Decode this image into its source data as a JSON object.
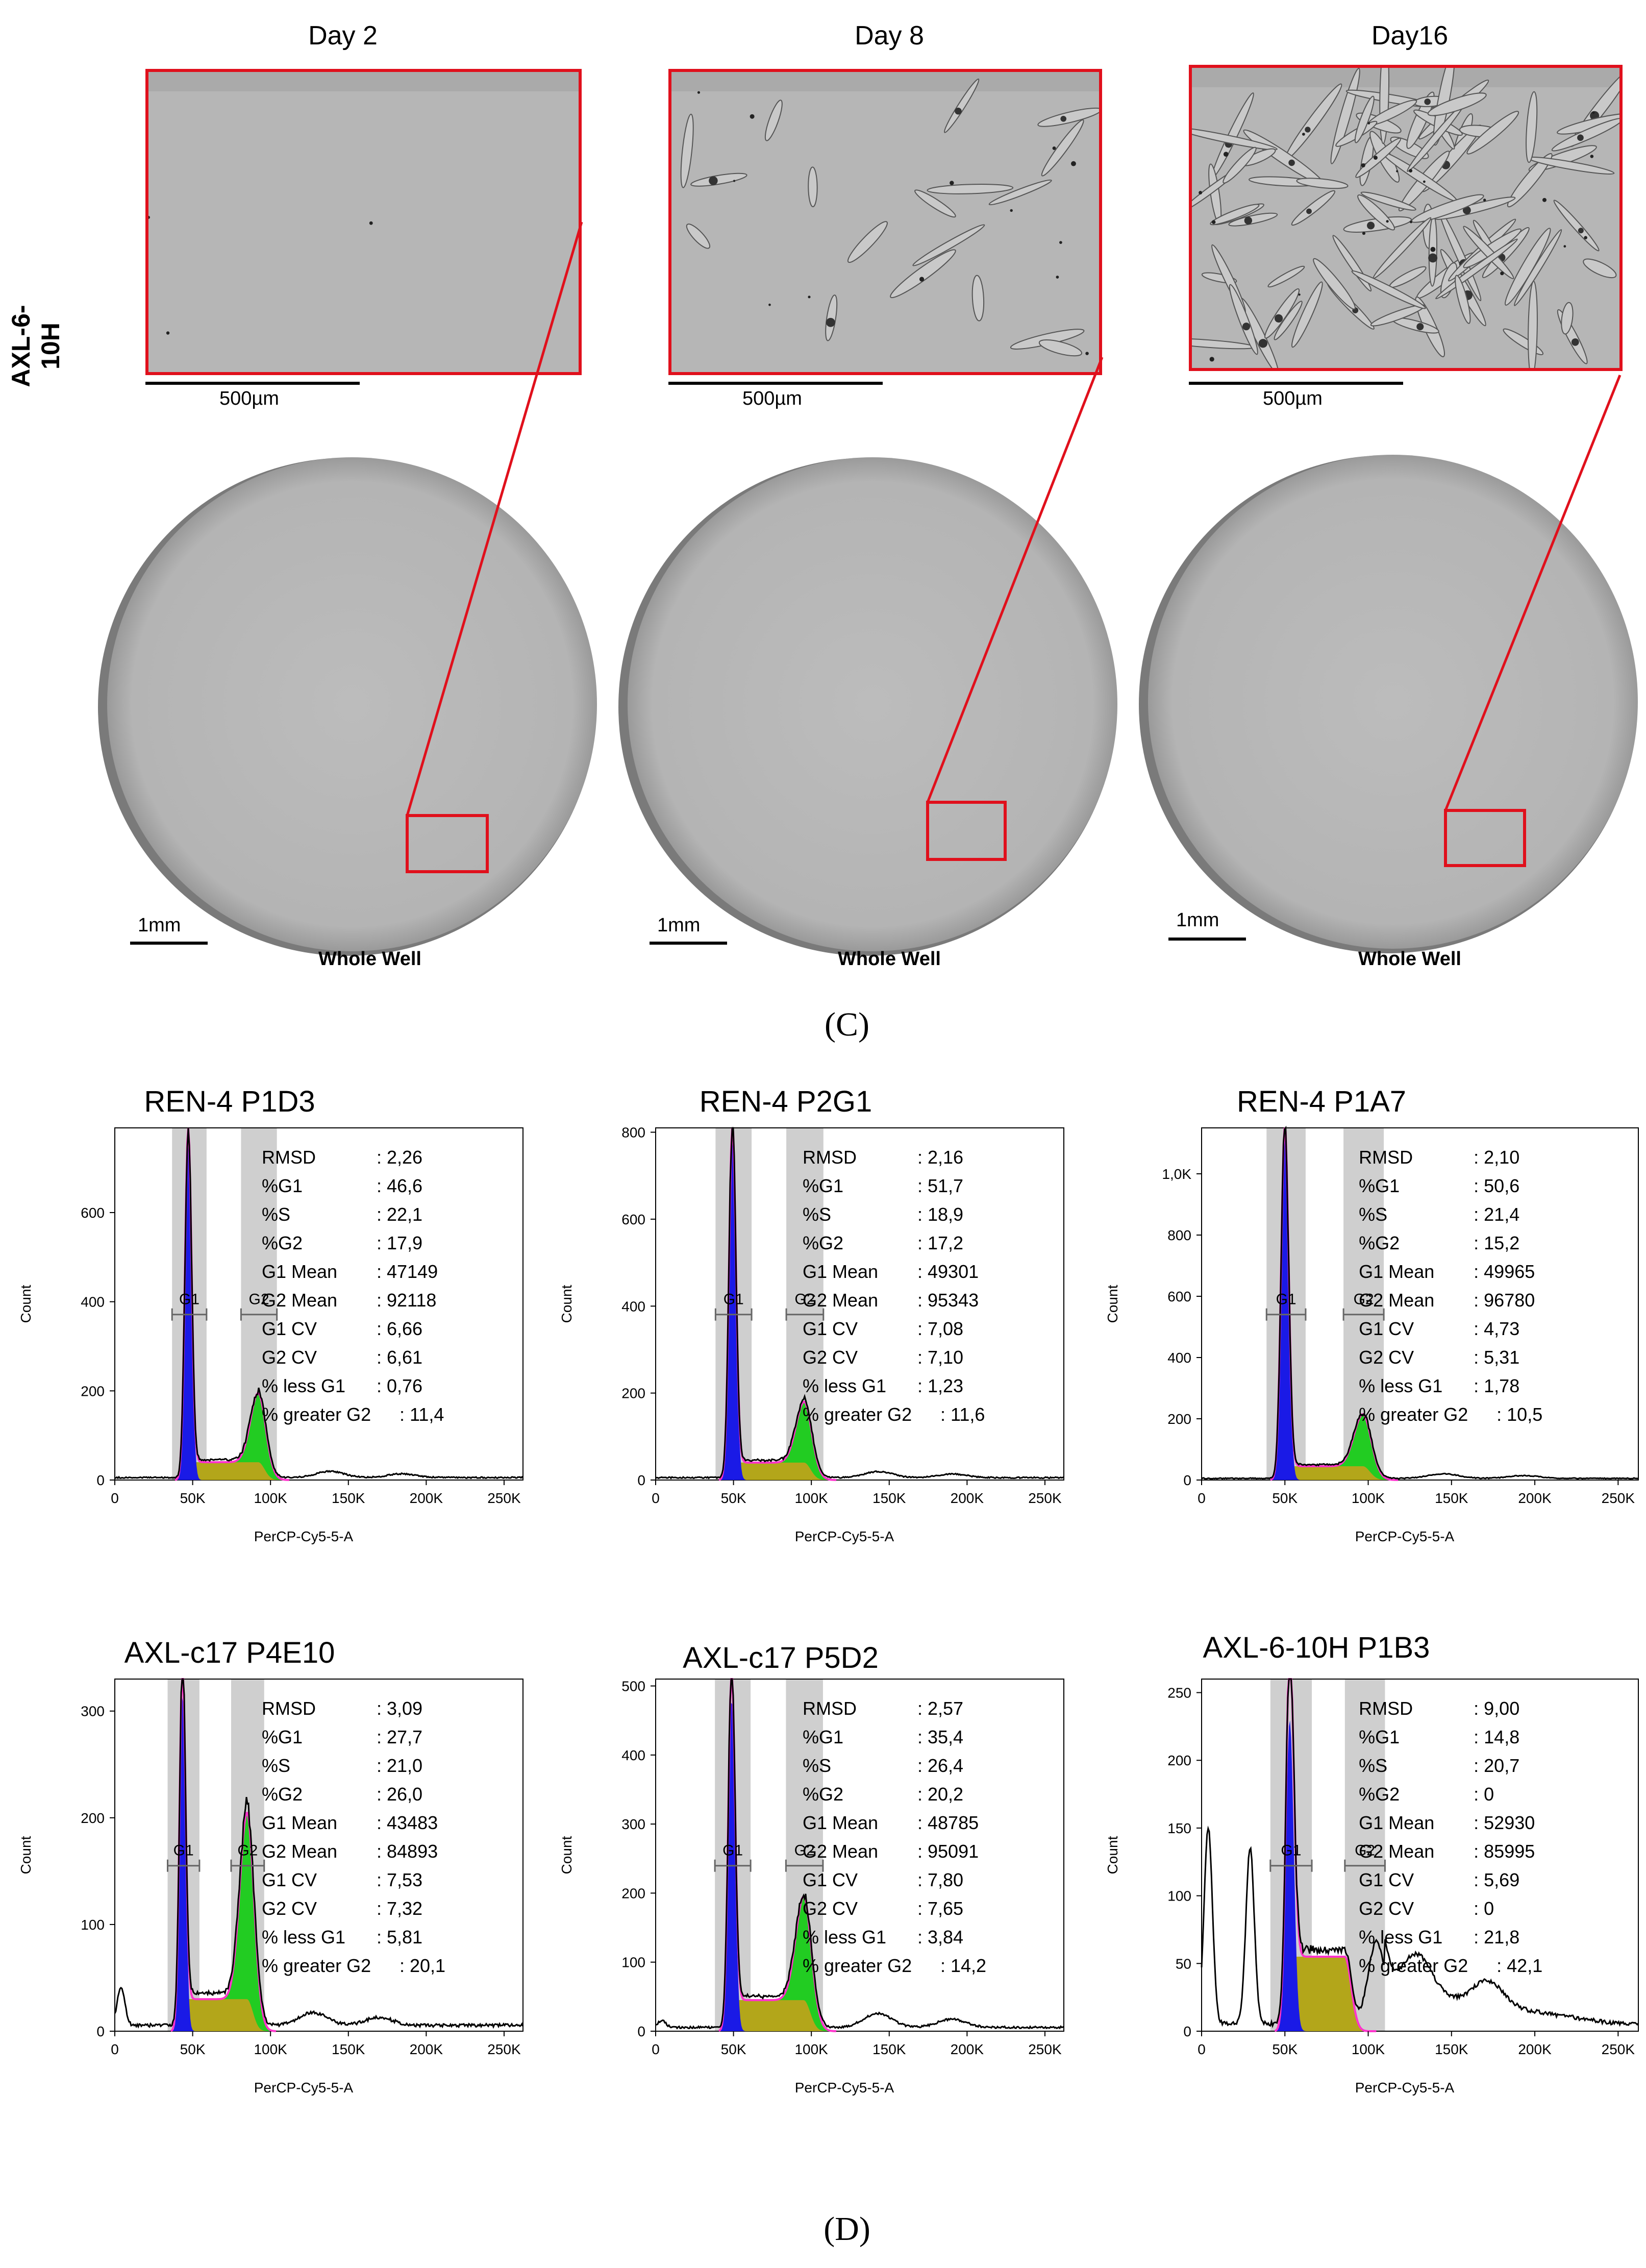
{
  "panel_c": {
    "row_label": "AXL-6-10H",
    "panel_letter": "(C)",
    "days": [
      {
        "title": "Day 2",
        "inset_scale": "500µm",
        "well_scale": "1mm",
        "well_label": "Whole Well",
        "cells": 0
      },
      {
        "title": "Day 8",
        "inset_scale": "500µm",
        "well_scale": "1mm",
        "well_label": "Whole Well",
        "cells": 18
      },
      {
        "title": "Day16",
        "inset_scale": "500µm",
        "well_scale": "1mm",
        "well_label": "Whole Well",
        "cells": 90
      }
    ],
    "colors": {
      "inset_border": "#e0101c",
      "zoom_line": "#e0101c",
      "well_fill": "#b8b8b8"
    }
  },
  "panel_d": {
    "panel_letter": "(D)",
    "series_colors": {
      "G1": "#1a1ae6",
      "S": "#b3a61a",
      "G2": "#22cc22",
      "fit": "#ff33cc",
      "data": "#000000",
      "gate": "#cfcfcf"
    }
  },
  "chart_data": [
    {
      "type": "area",
      "title": "REN-4 P1D3",
      "xlabel": "PerCP-Cy5-5-A",
      "ylabel": "Count",
      "xlim": [
        0,
        262144
      ],
      "ylim": [
        0,
        790
      ],
      "xticks": [
        "0",
        "50K",
        "100K",
        "150K",
        "200K",
        "250K"
      ],
      "xtick_values": [
        0,
        50000,
        100000,
        150000,
        200000,
        250000
      ],
      "yticks": [
        "0",
        "200",
        "400",
        "600"
      ],
      "ytick_values": [
        0,
        200,
        400,
        600
      ],
      "gate_labels": [
        "G1",
        "G2"
      ],
      "stats": [
        {
          "label": "RMSD",
          "value": "2,26"
        },
        {
          "label": "%G1",
          "value": "46,6"
        },
        {
          "label": "%S",
          "value": "22,1"
        },
        {
          "label": "%G2",
          "value": "17,9"
        },
        {
          "label": "G1 Mean",
          "value": "47149"
        },
        {
          "label": "G2 Mean",
          "value": "92118"
        },
        {
          "label": "G1 CV",
          "value": "6,66"
        },
        {
          "label": "G2 CV",
          "value": "6,61"
        },
        {
          "label": "% less G1",
          "value": "0,76"
        },
        {
          "label": "% greater G2",
          "value": "11,4"
        }
      ],
      "peaks": {
        "g1_x": 47149,
        "g1_h": 750,
        "g2_x": 92118,
        "g2_h": 155,
        "s_level": 40,
        "debris": 0,
        "aggregate": 14
      }
    },
    {
      "type": "area",
      "title": "REN-4 P2G1",
      "xlabel": "PerCP-Cy5-5-A",
      "ylabel": "Count",
      "xlim": [
        0,
        262144
      ],
      "ylim": [
        0,
        810
      ],
      "xticks": [
        "0",
        "50K",
        "100K",
        "150K",
        "200K",
        "250K"
      ],
      "xtick_values": [
        0,
        50000,
        100000,
        150000,
        200000,
        250000
      ],
      "yticks": [
        "0",
        "200",
        "400",
        "600",
        "800"
      ],
      "ytick_values": [
        0,
        200,
        400,
        600,
        800
      ],
      "gate_labels": [
        "G1",
        "G2"
      ],
      "stats": [
        {
          "label": "RMSD",
          "value": "2,16"
        },
        {
          "label": "%G1",
          "value": "51,7"
        },
        {
          "label": "%S",
          "value": "18,9"
        },
        {
          "label": "%G2",
          "value": "17,2"
        },
        {
          "label": "G1 Mean",
          "value": "49301"
        },
        {
          "label": "G2 Mean",
          "value": "95343"
        },
        {
          "label": "G1 CV",
          "value": "7,08"
        },
        {
          "label": "G2 CV",
          "value": "7,10"
        },
        {
          "label": "% less G1",
          "value": "1,23"
        },
        {
          "label": "% greater G2",
          "value": "11,6"
        }
      ],
      "peaks": {
        "g1_x": 49301,
        "g1_h": 780,
        "g2_x": 95343,
        "g2_h": 140,
        "s_level": 40,
        "debris": 0,
        "aggregate": 14
      }
    },
    {
      "type": "area",
      "title": "REN-4 P1A7",
      "xlabel": "PerCP-Cy5-5-A",
      "ylabel": "Count",
      "xlim": [
        0,
        262144
      ],
      "ylim": [
        0,
        1150
      ],
      "xticks": [
        "0",
        "50K",
        "100K",
        "150K",
        "200K",
        "250K"
      ],
      "xtick_values": [
        0,
        50000,
        100000,
        150000,
        200000,
        250000
      ],
      "yticks": [
        "0",
        "200",
        "400",
        "600",
        "800",
        "1,0K"
      ],
      "ytick_values": [
        0,
        200,
        400,
        600,
        800,
        1000
      ],
      "gate_labels": [
        "G1",
        "G2"
      ],
      "stats": [
        {
          "label": "RMSD",
          "value": "2,10"
        },
        {
          "label": "%G1",
          "value": "50,6"
        },
        {
          "label": "%S",
          "value": "21,4"
        },
        {
          "label": "%G2",
          "value": "15,2"
        },
        {
          "label": "G1 Mean",
          "value": "49965"
        },
        {
          "label": "G2 Mean",
          "value": "96780"
        },
        {
          "label": "G1 CV",
          "value": "4,73"
        },
        {
          "label": "G2 CV",
          "value": "5,31"
        },
        {
          "label": "% less G1",
          "value": "1,78"
        },
        {
          "label": "% greater G2",
          "value": "10,5"
        }
      ],
      "peaks": {
        "g1_x": 49965,
        "g1_h": 1120,
        "g2_x": 96780,
        "g2_h": 170,
        "s_level": 45,
        "debris": 0,
        "aggregate": 15
      }
    },
    {
      "type": "area",
      "title": "AXL-c17 P4E10",
      "xlabel": "PerCP-Cy5-5-A",
      "ylabel": "Count",
      "xlim": [
        0,
        262144
      ],
      "ylim": [
        0,
        330
      ],
      "xticks": [
        "0",
        "50K",
        "100K",
        "150K",
        "200K",
        "250K"
      ],
      "xtick_values": [
        0,
        50000,
        100000,
        150000,
        200000,
        250000
      ],
      "yticks": [
        "0",
        "100",
        "200",
        "300"
      ],
      "ytick_values": [
        0,
        100,
        200,
        300
      ],
      "gate_labels": [
        "G1",
        "G2"
      ],
      "stats": [
        {
          "label": "RMSD",
          "value": "3,09"
        },
        {
          "label": "%G1",
          "value": "27,7"
        },
        {
          "label": "%S",
          "value": "21,0"
        },
        {
          "label": "%G2",
          "value": "26,0"
        },
        {
          "label": "G1 Mean",
          "value": "43483"
        },
        {
          "label": "G2 Mean",
          "value": "84893"
        },
        {
          "label": "G1 CV",
          "value": "7,53"
        },
        {
          "label": "G2 CV",
          "value": "7,32"
        },
        {
          "label": "% less G1",
          "value": "5,81"
        },
        {
          "label": "% greater G2",
          "value": "20,1"
        }
      ],
      "peaks": {
        "g1_x": 43483,
        "g1_h": 315,
        "g2_x": 84893,
        "g2_h": 175,
        "s_level": 30,
        "debris": 35,
        "aggregate": 12
      }
    },
    {
      "type": "area",
      "title": "AXL-c17 P5D2",
      "xlabel": "PerCP-Cy5-5-A",
      "ylabel": "Count",
      "xlim": [
        0,
        262144
      ],
      "ylim": [
        0,
        510
      ],
      "xticks": [
        "0",
        "50K",
        "100K",
        "150K",
        "200K",
        "250K"
      ],
      "xtick_values": [
        0,
        50000,
        100000,
        150000,
        200000,
        250000
      ],
      "yticks": [
        "0",
        "100",
        "200",
        "300",
        "400",
        "500"
      ],
      "ytick_values": [
        0,
        100,
        200,
        300,
        400,
        500
      ],
      "gate_labels": [
        "G1",
        "G2"
      ],
      "stats": [
        {
          "label": "RMSD",
          "value": "2,57"
        },
        {
          "label": "%G1",
          "value": "35,4"
        },
        {
          "label": "%S",
          "value": "26,4"
        },
        {
          "label": "%G2",
          "value": "20,2"
        },
        {
          "label": "G1 Mean",
          "value": "48785"
        },
        {
          "label": "G2 Mean",
          "value": "95091"
        },
        {
          "label": "G1 CV",
          "value": "7,80"
        },
        {
          "label": "G2 CV",
          "value": "7,65"
        },
        {
          "label": "% less G1",
          "value": "3,84"
        },
        {
          "label": "% greater G2",
          "value": "14,2"
        }
      ],
      "peaks": {
        "g1_x": 48785,
        "g1_h": 480,
        "g2_x": 95091,
        "g2_h": 150,
        "s_level": 45,
        "debris": 10,
        "aggregate": 20
      }
    },
    {
      "type": "area",
      "title": "AXL-6-10H P1B3",
      "xlabel": "PerCP-Cy5-5-A",
      "ylabel": "Count",
      "xlim": [
        0,
        262144
      ],
      "ylim": [
        0,
        260
      ],
      "xticks": [
        "0",
        "50K",
        "100K",
        "150K",
        "200K",
        "250K"
      ],
      "xtick_values": [
        0,
        50000,
        100000,
        150000,
        200000,
        250000
      ],
      "yticks": [
        "0",
        "50",
        "100",
        "150",
        "200",
        "250"
      ],
      "ytick_values": [
        0,
        50,
        100,
        150,
        200,
        250
      ],
      "gate_labels": [
        "G1",
        "G2"
      ],
      "stats": [
        {
          "label": "RMSD",
          "value": "9,00"
        },
        {
          "label": "%G1",
          "value": "14,8"
        },
        {
          "label": "%S",
          "value": "20,7"
        },
        {
          "label": "%G2",
          "value": "0"
        },
        {
          "label": "G1 Mean",
          "value": "52930"
        },
        {
          "label": "G2 Mean",
          "value": "85995"
        },
        {
          "label": "G1 CV",
          "value": "5,69"
        },
        {
          "label": "G2 CV",
          "value": "0"
        },
        {
          "label": "% less G1",
          "value": "21,8"
        },
        {
          "label": "% greater G2",
          "value": "42,1"
        }
      ],
      "peaks": {
        "g1_x": 52930,
        "g1_h": 230,
        "g2_x": 85995,
        "g2_h": 0,
        "s_level": 55,
        "debris": 145,
        "aggregate": 30
      }
    }
  ]
}
